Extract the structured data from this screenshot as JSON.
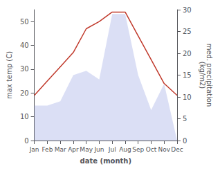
{
  "chart_data": {
    "type": "line",
    "categories": [
      "Jan",
      "Feb",
      "Mar",
      "Apr",
      "May",
      "Jun",
      "Jul",
      "Aug",
      "Sep",
      "Oct",
      "Nov",
      "Dec"
    ],
    "xlabel": "date (month)",
    "ylabel": "max temp (C)",
    "y2label": "med. precipitation\n(kg/m2)",
    "ylim": [
      0,
      55
    ],
    "yticks": [
      0,
      10,
      20,
      30,
      40,
      50
    ],
    "y2lim": [
      0,
      30
    ],
    "y2ticks": [
      0,
      5,
      10,
      15,
      20,
      25,
      30
    ],
    "grid": false,
    "series": [
      {
        "type": "area",
        "color": "#b0b8e8",
        "axis": "y2",
        "values": [
          8,
          8,
          9,
          15,
          16,
          14,
          29,
          29,
          15,
          7,
          13,
          0
        ]
      },
      {
        "type": "line",
        "color": "#c0392b",
        "values": [
          19,
          25,
          31,
          37,
          47,
          50,
          54,
          54,
          44,
          34,
          24,
          19
        ]
      }
    ]
  }
}
